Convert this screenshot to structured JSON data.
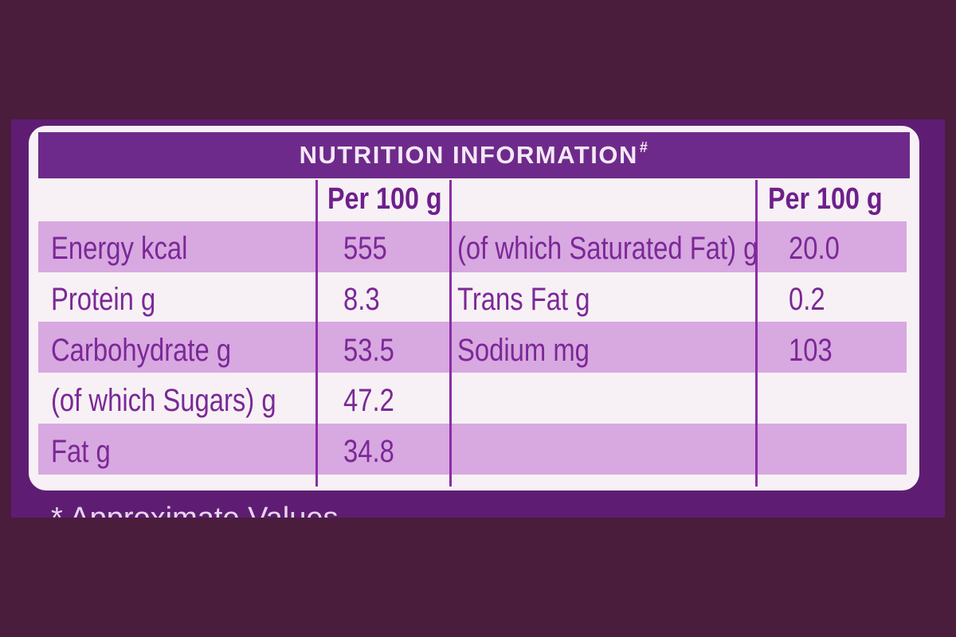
{
  "label": {
    "title": "NUTRITION INFORMATION",
    "title_mark": "#",
    "column_header_left": "Per 100 g",
    "column_header_right": "Per 100 g",
    "left_rows": [
      {
        "nutrient": "Energy kcal",
        "value": "555"
      },
      {
        "nutrient": "Protein g",
        "value": "8.3"
      },
      {
        "nutrient": "Carbohydrate g",
        "value": "53.5"
      },
      {
        "nutrient": "(of which Sugars) g",
        "value": "47.2"
      },
      {
        "nutrient": "Fat g",
        "value": "34.8"
      }
    ],
    "right_rows": [
      {
        "nutrient": "(of which Saturated Fat) g",
        "value": "20.0"
      },
      {
        "nutrient": "Trans Fat g",
        "value": "0.2"
      },
      {
        "nutrient": "Sodium mg",
        "value": "103"
      }
    ],
    "footnote": "* Approximate Values"
  },
  "colors": {
    "background": "#4a1d3c",
    "wrapper": "#5e1d73",
    "panel": "#f7f1f5",
    "header_band": "#6e2a8a",
    "row_band": "#d8a8e1",
    "text": "#7b2896"
  }
}
